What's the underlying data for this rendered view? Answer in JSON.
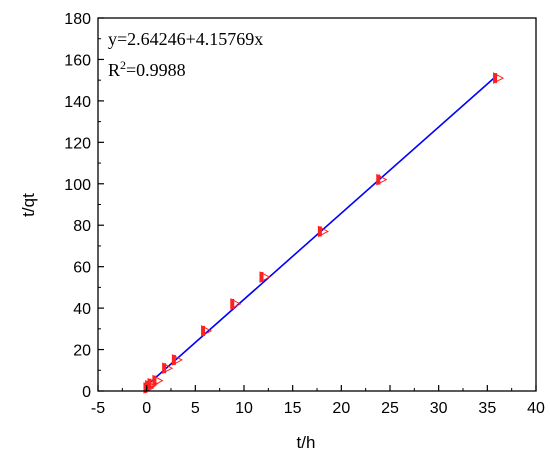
{
  "chart_data": {
    "type": "scatter",
    "xlabel": "t/h",
    "ylabel": "t/qt",
    "xlim": [
      -5,
      40
    ],
    "ylim": [
      0,
      180
    ],
    "xticks": [
      -5,
      0,
      5,
      10,
      15,
      20,
      25,
      30,
      35,
      40
    ],
    "yticks": [
      0,
      20,
      40,
      60,
      80,
      100,
      120,
      140,
      160,
      180
    ],
    "grid": false,
    "series": [
      {
        "marker": "half-filled-right-triangle",
        "color": "#ff2020",
        "x": [
          0.083,
          0.25,
          0.5,
          1,
          2,
          3,
          6,
          9,
          12,
          18,
          24,
          36
        ],
        "y": [
          1.5,
          2.5,
          3.5,
          5,
          11,
          15,
          29,
          42,
          55,
          77,
          102,
          151
        ]
      }
    ],
    "fit": {
      "color": "#0000ff",
      "intercept": 2.64246,
      "slope": 4.15769,
      "x_range": [
        0.083,
        36
      ]
    },
    "annotations": {
      "equation": "y=2.64246+4.15769x",
      "r2_base": "R",
      "r2_sup": "2",
      "r2_value": "=0.9988"
    }
  }
}
